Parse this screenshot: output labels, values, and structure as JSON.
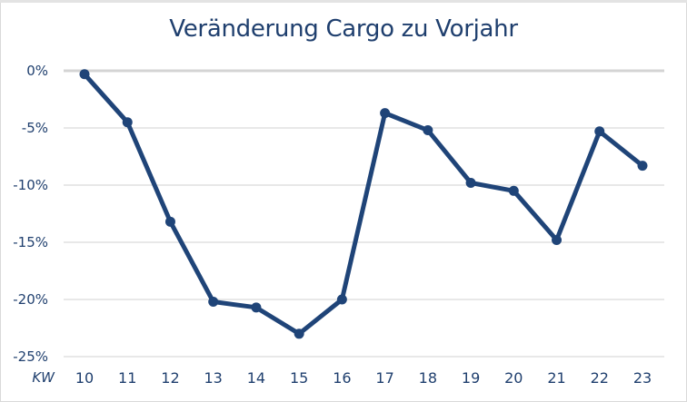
{
  "chart_data": {
    "type": "line",
    "title": "Veränderung Cargo zu Vorjahr",
    "xlabel": "KW",
    "ylabel": "",
    "categories": [
      "10",
      "11",
      "12",
      "13",
      "14",
      "15",
      "16",
      "17",
      "18",
      "19",
      "20",
      "21",
      "22",
      "23"
    ],
    "series": [
      {
        "name": "Veränderung Cargo zu Vorjahr",
        "color": "#1f4478",
        "values": [
          -0.3,
          -4.5,
          -13.2,
          -20.2,
          -20.7,
          -23.0,
          -20.0,
          -3.7,
          -5.2,
          -9.8,
          -10.5,
          -14.8,
          -5.3,
          -8.3
        ]
      }
    ],
    "yticks": [
      "0%",
      "-5%",
      "-10%",
      "-15%",
      "-20%",
      "-25%"
    ],
    "ytick_values": [
      0,
      -5,
      -10,
      -15,
      -20,
      -25
    ],
    "ylim": [
      -25,
      0
    ],
    "grid": true,
    "legend": "none",
    "unit": "%"
  }
}
